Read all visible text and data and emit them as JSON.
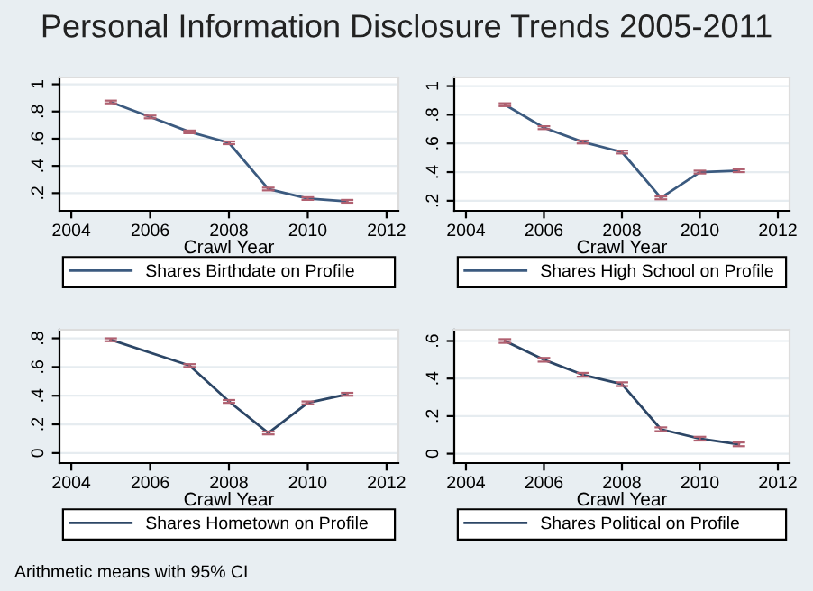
{
  "chart_data": [
    {
      "type": "line",
      "title": "Personal Information Disclosure Trends 2005-2011",
      "xlabel": "Crawl Year",
      "x": [
        2005,
        2006,
        2007,
        2008,
        2009,
        2010,
        2011
      ],
      "series": [
        {
          "name": "Shares Birthdate on Profile",
          "color": "#3b5a7f",
          "values": [
            0.87,
            0.76,
            0.65,
            0.57,
            0.23,
            0.16,
            0.14
          ],
          "errors": [
            0.01,
            0.01,
            0.01,
            0.01,
            0.01,
            0.01,
            0.01
          ]
        }
      ],
      "xlim": [
        2003.7,
        2012.3
      ],
      "xticks": [
        2004,
        2006,
        2008,
        2010,
        2012
      ],
      "ylim": [
        0.07,
        1.05
      ],
      "yticks": [
        {
          "value": 0.2,
          "label": ".2"
        },
        {
          "value": 0.4,
          "label": ".4"
        },
        {
          "value": 0.6,
          "label": ".6"
        },
        {
          "value": 0.8,
          "label": ".8"
        },
        {
          "value": 1,
          "label": "1"
        }
      ],
      "grid": "y",
      "legend": "bottom"
    },
    {
      "type": "line",
      "xlabel": "Crawl Year",
      "x": [
        2005,
        2006,
        2007,
        2008,
        2009,
        2010,
        2011
      ],
      "series": [
        {
          "name": "Shares High School on Profile",
          "color": "#3b5a7f",
          "values": [
            0.87,
            0.71,
            0.61,
            0.54,
            0.22,
            0.4,
            0.41
          ],
          "errors": [
            0.01,
            0.01,
            0.01,
            0.01,
            0.01,
            0.01,
            0.01
          ]
        }
      ],
      "xlim": [
        2003.7,
        2012.3
      ],
      "xticks": [
        2004,
        2006,
        2008,
        2010,
        2012
      ],
      "ylim": [
        0.13,
        1.06
      ],
      "yticks": [
        {
          "value": 0.2,
          "label": ".2"
        },
        {
          "value": 0.4,
          "label": ".4"
        },
        {
          "value": 0.6,
          "label": ".6"
        },
        {
          "value": 0.8,
          "label": ".8"
        },
        {
          "value": 1,
          "label": "1"
        }
      ],
      "grid": "y",
      "legend": "bottom"
    },
    {
      "type": "line",
      "xlabel": "Crawl Year",
      "x": [
        2005,
        2007,
        2008,
        2009,
        2010,
        2011
      ],
      "series": [
        {
          "name": "Shares Hometown on Profile",
          "color": "#2c4666",
          "values": [
            0.79,
            0.61,
            0.36,
            0.14,
            0.35,
            0.41
          ],
          "errors": [
            0.01,
            0.01,
            0.01,
            0.01,
            0.01,
            0.01
          ]
        }
      ],
      "xlim": [
        2003.7,
        2012.3
      ],
      "xticks": [
        2004,
        2006,
        2008,
        2010,
        2012
      ],
      "ylim": [
        -0.07,
        0.86
      ],
      "yticks": [
        {
          "value": 0,
          "label": "0"
        },
        {
          "value": 0.2,
          "label": ".2"
        },
        {
          "value": 0.4,
          "label": ".4"
        },
        {
          "value": 0.6,
          "label": ".6"
        },
        {
          "value": 0.8,
          "label": ".8"
        }
      ],
      "grid": "y",
      "legend": "bottom"
    },
    {
      "type": "line",
      "xlabel": "Crawl Year",
      "x": [
        2005,
        2006,
        2007,
        2008,
        2009,
        2010,
        2011
      ],
      "series": [
        {
          "name": "Shares Political on Profile",
          "color": "#2c4666",
          "values": [
            0.6,
            0.5,
            0.42,
            0.37,
            0.13,
            0.08,
            0.05
          ],
          "errors": [
            0.01,
            0.01,
            0.01,
            0.01,
            0.01,
            0.01,
            0.01
          ]
        }
      ],
      "xlim": [
        2003.7,
        2012.3
      ],
      "xticks": [
        2004,
        2006,
        2008,
        2010,
        2012
      ],
      "ylim": [
        -0.05,
        0.66
      ],
      "yticks": [
        {
          "value": 0,
          "label": "0"
        },
        {
          "value": 0.2,
          "label": ".2"
        },
        {
          "value": 0.4,
          "label": ".4"
        },
        {
          "value": 0.6,
          "label": ".6"
        }
      ],
      "grid": "y",
      "legend": "bottom",
      "annotations": [
        "Arithmetic means with 95% CI"
      ]
    }
  ]
}
